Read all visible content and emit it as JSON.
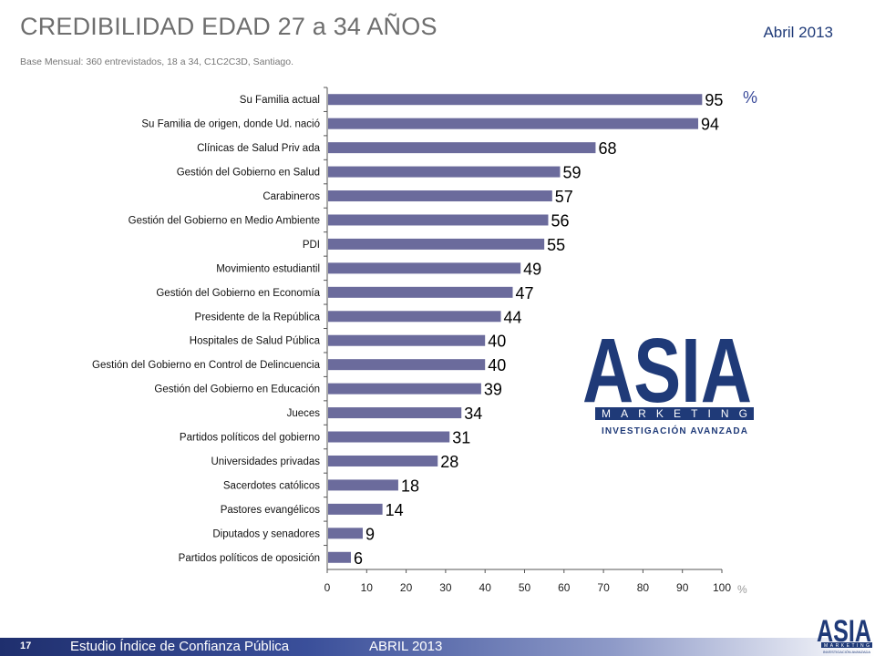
{
  "header": {
    "title": "CREDIBILIDAD EDAD 27 a 34 AÑOS",
    "date": "Abril 2013",
    "subtitle": "Base Mensual: 360 entrevistados, 18 a 34, C1C2C3D, Santiago."
  },
  "chart_data": {
    "type": "bar",
    "orientation": "horizontal",
    "categories": [
      "Su Familia actual",
      "Su Familia de origen, donde Ud. nació",
      "Clínicas de Salud Priv ada",
      "Gestión del Gobierno en Salud",
      "Carabineros",
      "Gestión del Gobierno en Medio Ambiente",
      "PDI",
      "Movimiento estudiantil",
      "Gestión del Gobierno en Economía",
      "Presidente de la República",
      "Hospitales de Salud Pública",
      "Gestión del Gobierno en Control de Delincuencia",
      "Gestión del Gobierno en Educación",
      "Jueces",
      "Partidos políticos del gobierno",
      "Universidades privadas",
      "Sacerdotes católicos",
      "Pastores evangélicos",
      "Diputados y senadores",
      "Partidos políticos de oposición"
    ],
    "values": [
      95,
      94,
      68,
      59,
      57,
      56,
      55,
      49,
      47,
      44,
      40,
      40,
      39,
      34,
      31,
      28,
      18,
      14,
      9,
      6
    ],
    "xlim": [
      0,
      100
    ],
    "xticks": [
      0,
      10,
      20,
      30,
      40,
      50,
      60,
      70,
      80,
      90,
      100
    ],
    "unit_label": "%",
    "axis_unit_label": "%",
    "bar_color": "#6b6b9c",
    "grid": false
  },
  "logo": {
    "letters": "ASIA",
    "band": "MARKETING",
    "tagline": "INVESTIGACIÓN AVANZADA",
    "primary_color": "#1f3a78"
  },
  "footer": {
    "page_number": "17",
    "study": "Estudio  Índice de Confianza Pública",
    "date": "ABRIL 2013",
    "small_logo_tagline": "INVESTIGACIÓN AVANZADA"
  }
}
